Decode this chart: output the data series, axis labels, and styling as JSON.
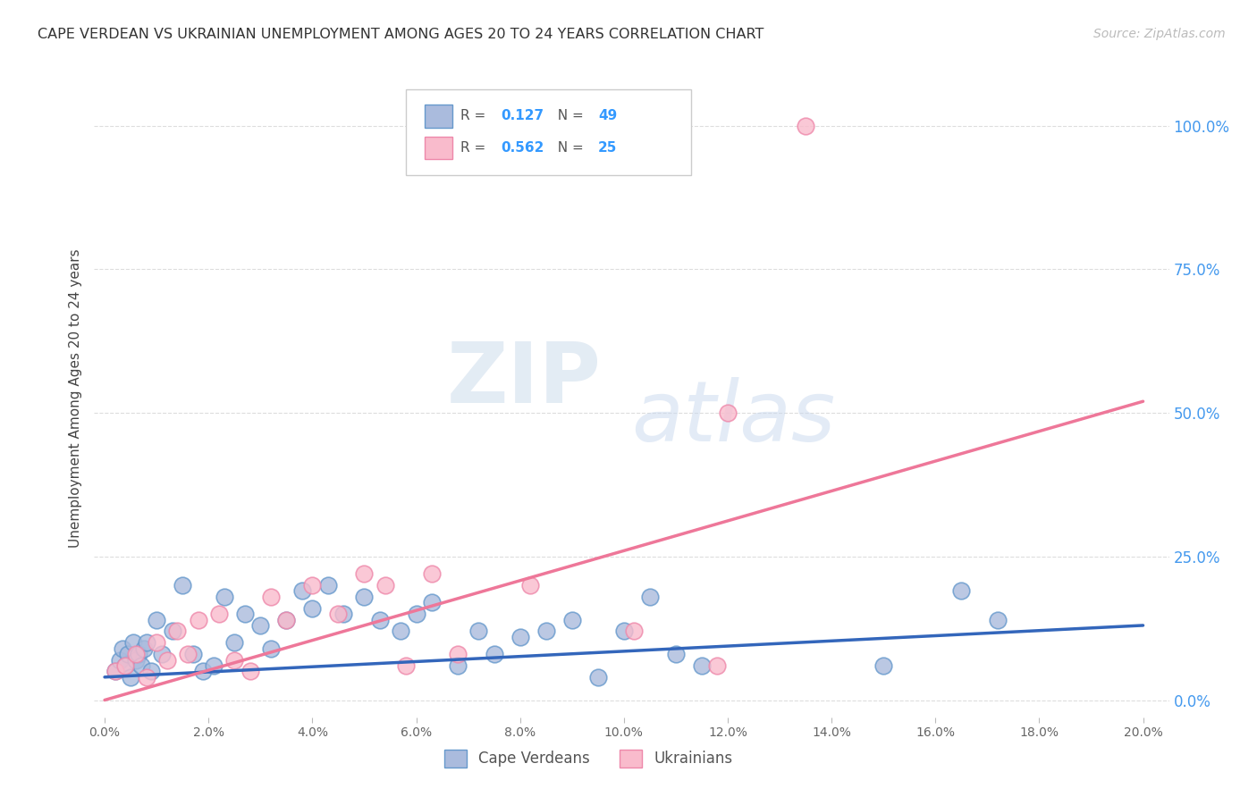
{
  "title": "CAPE VERDEAN VS UKRAINIAN UNEMPLOYMENT AMONG AGES 20 TO 24 YEARS CORRELATION CHART",
  "source": "Source: ZipAtlas.com",
  "ylabel": "Unemployment Among Ages 20 to 24 years",
  "xtick_vals": [
    0,
    2,
    4,
    6,
    8,
    10,
    12,
    14,
    16,
    18,
    20
  ],
  "ytick_vals": [
    0,
    25,
    50,
    75,
    100
  ],
  "ytick_labels": [
    "0.0%",
    "25.0%",
    "50.0%",
    "75.0%",
    "100.0%"
  ],
  "xlim": [
    -0.2,
    20.5
  ],
  "ylim": [
    -3,
    108
  ],
  "blue_color": "#AABBDD",
  "pink_color": "#F9BBCC",
  "blue_edge_color": "#6699CC",
  "pink_edge_color": "#EE88AA",
  "blue_line_color": "#3366BB",
  "pink_line_color": "#EE7799",
  "background_color": "#FFFFFF",
  "grid_color": "#DDDDDD",
  "legend_label1": "Cape Verdeans",
  "legend_label2": "Ukrainians",
  "r1": "0.127",
  "n1": "49",
  "r2": "0.562",
  "n2": "25",
  "blue_scatter_x": [
    0.2,
    0.3,
    0.35,
    0.4,
    0.45,
    0.5,
    0.55,
    0.6,
    0.65,
    0.7,
    0.75,
    0.8,
    0.9,
    1.0,
    1.1,
    1.3,
    1.5,
    1.7,
    1.9,
    2.1,
    2.3,
    2.5,
    2.7,
    3.0,
    3.2,
    3.5,
    3.8,
    4.0,
    4.3,
    4.6,
    5.0,
    5.3,
    5.7,
    6.0,
    6.3,
    6.8,
    7.2,
    7.5,
    8.0,
    8.5,
    9.0,
    9.5,
    10.0,
    10.5,
    11.0,
    11.5,
    15.0,
    16.5,
    17.2
  ],
  "blue_scatter_y": [
    5,
    7,
    9,
    6,
    8,
    4,
    10,
    7,
    8,
    6,
    9,
    10,
    5,
    14,
    8,
    12,
    20,
    8,
    5,
    6,
    18,
    10,
    15,
    13,
    9,
    14,
    19,
    16,
    20,
    15,
    18,
    14,
    12,
    15,
    17,
    6,
    12,
    8,
    11,
    12,
    14,
    4,
    12,
    18,
    8,
    6,
    6,
    19,
    14
  ],
  "pink_scatter_x": [
    0.2,
    0.4,
    0.6,
    0.8,
    1.0,
    1.2,
    1.4,
    1.6,
    1.8,
    2.2,
    2.5,
    2.8,
    3.2,
    3.5,
    4.0,
    4.5,
    5.0,
    5.4,
    5.8,
    6.3,
    6.8,
    8.2,
    10.2,
    11.8,
    12.0
  ],
  "pink_scatter_y": [
    5,
    6,
    8,
    4,
    10,
    7,
    12,
    8,
    14,
    15,
    7,
    5,
    18,
    14,
    20,
    15,
    22,
    20,
    6,
    22,
    8,
    20,
    12,
    6,
    50
  ],
  "outlier_pink_x": 13.5,
  "outlier_pink_y": 100,
  "blue_line_x": [
    0,
    20
  ],
  "blue_line_y": [
    4,
    13
  ],
  "pink_line_x": [
    0,
    20
  ],
  "pink_line_y": [
    0,
    52
  ]
}
